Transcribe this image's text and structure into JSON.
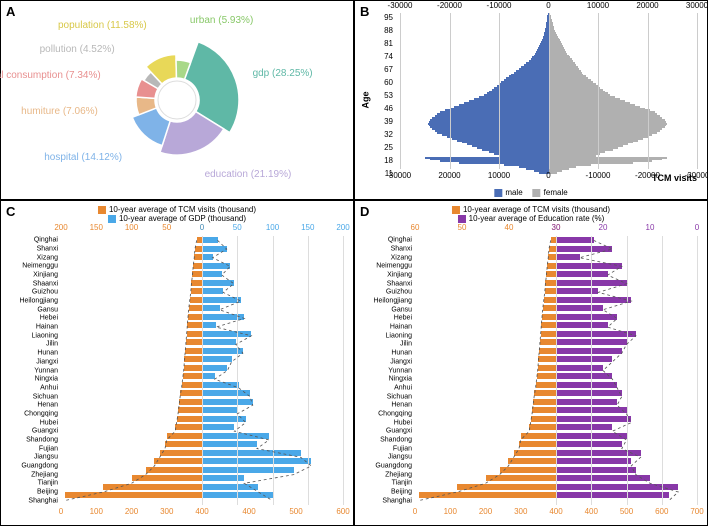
{
  "panels": {
    "A": "A",
    "B": "B",
    "C": "C",
    "D": "D"
  },
  "A": {
    "type": "donut",
    "slices": [
      {
        "label": "gdp",
        "pct": 28.25,
        "color": "#5fb8a6",
        "label_color": "#5fb8a6"
      },
      {
        "label": "education",
        "pct": 21.19,
        "color": "#b8a8d8",
        "label_color": "#b8a8d8"
      },
      {
        "label": "hospital",
        "pct": 14.12,
        "color": "#7fb3e8",
        "label_color": "#7fb3e8"
      },
      {
        "label": "humiture",
        "pct": 7.06,
        "color": "#e8b888",
        "label_color": "#e8b888"
      },
      {
        "label": "medical consumption",
        "pct": 7.34,
        "color": "#e89090",
        "label_color": "#e89090"
      },
      {
        "label": "pollution",
        "pct": 4.52,
        "color": "#b8b8b8",
        "label_color": "#b8b8b8"
      },
      {
        "label": "population",
        "pct": 11.58,
        "color": "#e8d858",
        "label_color": "#d8c848"
      },
      {
        "label": "urban",
        "pct": 5.93,
        "color": "#a8d888",
        "label_color": "#88c868"
      }
    ],
    "inner_r": 22,
    "outer_base": 34,
    "outer_scale": 1.0,
    "label_fontsize": 10
  },
  "B": {
    "type": "population-pyramid",
    "ylabel": "Age",
    "xlabel": "TCM visits",
    "yticks": [
      11,
      18,
      25,
      32,
      39,
      46,
      53,
      60,
      67,
      74,
      81,
      88,
      95
    ],
    "xticks_top": [
      -30000,
      -20000,
      -10000,
      0,
      10000,
      20000,
      30000
    ],
    "xticks_bot": [
      30000,
      20000,
      10000,
      0,
      -10000,
      -20000,
      -30000
    ],
    "xmax": 30000,
    "legend": [
      {
        "label": "male",
        "color": "#4a6db5"
      },
      {
        "label": "female",
        "color": "#b0b0b0"
      }
    ],
    "male_color": "#4a6db5",
    "female_color": "#b0b0b0",
    "grid_color": "#cccccc",
    "ages": [
      11,
      95
    ],
    "male": [
      2000,
      3000,
      4500,
      6000,
      9000,
      18000,
      22000,
      24000,
      25000,
      10000,
      11000,
      12000,
      13500,
      14500,
      15500,
      16500,
      17500,
      18500,
      19500,
      20500,
      21500,
      22500,
      23000,
      23500,
      24000,
      24200,
      24300,
      24200,
      24000,
      23500,
      23000,
      22500,
      22000,
      21000,
      20000,
      19000,
      18000,
      17000,
      16000,
      15000,
      14000,
      13000,
      12500,
      12000,
      11500,
      11000,
      10500,
      10000,
      9500,
      9000,
      8500,
      8000,
      7500,
      7000,
      6500,
      6000,
      5500,
      5000,
      4500,
      4000,
      3600,
      3300,
      3000,
      2700,
      2500,
      2300,
      2100,
      1900,
      1700,
      1500,
      1300,
      1200,
      1100,
      1000,
      900,
      800,
      700,
      600,
      500,
      450,
      400,
      350,
      300,
      250,
      200
    ],
    "female": [
      1800,
      2800,
      4200,
      5500,
      8500,
      17000,
      21000,
      23000,
      24000,
      9500,
      10500,
      11500,
      13000,
      14000,
      15000,
      16000,
      17000,
      18000,
      19000,
      20000,
      21000,
      22000,
      22500,
      23000,
      23500,
      23800,
      23900,
      23800,
      23500,
      23000,
      22500,
      22000,
      21500,
      20500,
      19500,
      18500,
      17500,
      16500,
      15500,
      14500,
      13500,
      12500,
      12000,
      11500,
      11000,
      10500,
      10000,
      9500,
      9000,
      8500,
      8000,
      7500,
      7000,
      6800,
      6500,
      6200,
      5900,
      5600,
      5300,
      5000,
      4700,
      4400,
      4100,
      3800,
      3600,
      3400,
      3200,
      3000,
      2800,
      2600,
      2400,
      2200,
      2000,
      1800,
      1600,
      1400,
      1200,
      1100,
      1000,
      900,
      800,
      700,
      600,
      500,
      400
    ]
  },
  "C": {
    "type": "diverging-bar",
    "legend_left": {
      "label": "10-year average of TCM visits (thousand)",
      "color": "#e88830"
    },
    "legend_right": {
      "label": "10-year average of GDP (thousand)",
      "color": "#4aa8e8"
    },
    "left_color": "#e88830",
    "right_color": "#4aa8e8",
    "grid_color": "#dddddd",
    "xticks_top_left": [
      200,
      150,
      100,
      50,
      0
    ],
    "xticks_top_right": [
      0,
      50,
      100,
      150,
      200
    ],
    "xticks_bot_left": [
      0,
      100,
      200,
      300,
      400
    ],
    "xticks_bot_right": [
      400,
      500,
      600
    ],
    "top_tick_color_left": "#e88830",
    "top_tick_color_right": "#4aa8e8",
    "bot_tick_color": "#e88830",
    "left_max": 400,
    "right_max": 200,
    "provinces": [
      "Qinghai",
      "Shanxi",
      "Xizang",
      "Neimenggu",
      "Xinjiang",
      "Shaanxi",
      "Guizhou",
      "Heilongjiang",
      "Gansu",
      "Hebei",
      "Hainan",
      "Liaoning",
      "Jilin",
      "Hunan",
      "Jiangxi",
      "Yunnan",
      "Ningxia",
      "Anhui",
      "Sichuan",
      "Henan",
      "Chongqing",
      "Hubei",
      "Guangxi",
      "Shandong",
      "Fujian",
      "Jiangsu",
      "Guangdong",
      "Zhejiang",
      "Tianjin",
      "Beijing",
      "Shanghai"
    ],
    "tcm": [
      15,
      20,
      22,
      25,
      27,
      30,
      32,
      35,
      38,
      40,
      42,
      44,
      46,
      48,
      50,
      52,
      55,
      58,
      62,
      65,
      68,
      72,
      76,
      100,
      105,
      120,
      135,
      160,
      200,
      280,
      390
    ],
    "gdp": [
      22,
      35,
      15,
      40,
      28,
      45,
      30,
      55,
      25,
      60,
      20,
      70,
      48,
      58,
      42,
      36,
      18,
      52,
      68,
      72,
      50,
      62,
      46,
      95,
      78,
      140,
      155,
      130,
      60,
      80,
      100
    ]
  },
  "D": {
    "type": "diverging-bar",
    "legend_left": {
      "label": "10-year average of TCM visits (thousand)",
      "color": "#e88830"
    },
    "legend_right": {
      "label": "10-year average of Education rate (%)",
      "color": "#8838a8"
    },
    "left_color": "#e88830",
    "right_color": "#8838a8",
    "grid_color": "#dddddd",
    "xticks_top_left": [
      60,
      50,
      40,
      30
    ],
    "xticks_top_right": [
      30,
      20,
      10,
      0
    ],
    "xticks_bot_left": [
      0,
      100,
      200,
      300,
      400
    ],
    "xticks_bot_right": [
      400,
      500,
      600,
      700
    ],
    "top_tick_color_left": "#e88830",
    "top_tick_color_right": "#8838a8",
    "bot_tick_color": "#e88830",
    "left_max": 400,
    "right_max": 30,
    "provinces": [
      "Qinghai",
      "Shanxi",
      "Xizang",
      "Neimenggu",
      "Xinjiang",
      "Shaanxi",
      "Guizhou",
      "Heilongjiang",
      "Gansu",
      "Hebei",
      "Hainan",
      "Liaoning",
      "Jilin",
      "Hunan",
      "Jiangxi",
      "Yunnan",
      "Ningxia",
      "Anhui",
      "Sichuan",
      "Henan",
      "Chongqing",
      "Hubei",
      "Guangxi",
      "Shandong",
      "Fujian",
      "Jiangsu",
      "Guangdong",
      "Zhejiang",
      "Tianjin",
      "Beijing",
      "Shanghai"
    ],
    "tcm": [
      15,
      20,
      22,
      25,
      27,
      30,
      32,
      35,
      38,
      40,
      42,
      44,
      46,
      48,
      50,
      52,
      55,
      58,
      62,
      65,
      68,
      72,
      76,
      100,
      105,
      120,
      135,
      160,
      200,
      280,
      390
    ],
    "edu": [
      8,
      12,
      5,
      14,
      11,
      15,
      9,
      16,
      10,
      13,
      11,
      17,
      15,
      14,
      12,
      10,
      12,
      13,
      14,
      13,
      15,
      16,
      12,
      15,
      14,
      18,
      16,
      17,
      20,
      26,
      24
    ]
  }
}
